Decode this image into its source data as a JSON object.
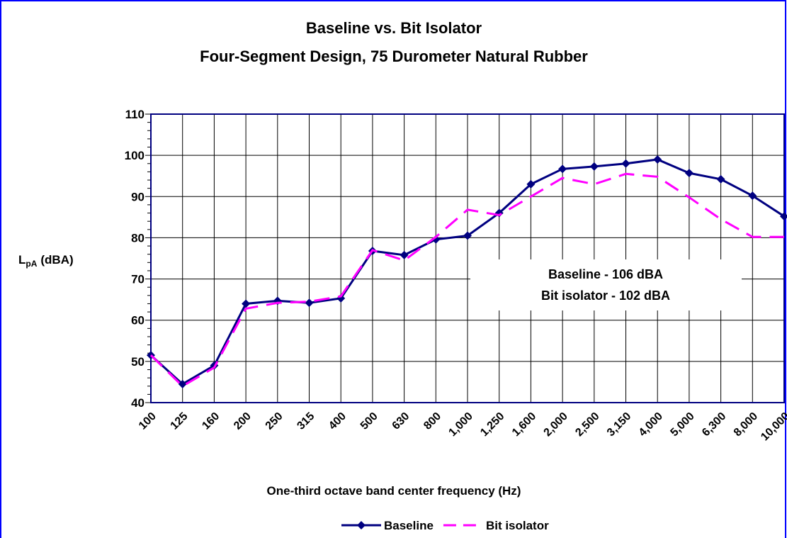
{
  "chart_data": {
    "type": "line",
    "title": [
      "Baseline vs. Bit Isolator",
      "Four-Segment Design, 75 Durometer Natural Rubber"
    ],
    "ylabel": {
      "base": "L",
      "subscript": "pA",
      "suffix": "(dBA)"
    },
    "xlabel": "One-third octave band center frequency (Hz)",
    "categories": [
      "100",
      "125",
      "160",
      "200",
      "250",
      "315",
      "400",
      "500",
      "630",
      "800",
      "1,000",
      "1,250",
      "1,600",
      "2,000",
      "2,500",
      "3,150",
      "4,000",
      "5,000",
      "6,300",
      "8,000",
      "10,000"
    ],
    "series": [
      {
        "name": "Baseline",
        "color": "#000080",
        "dash": false,
        "marker": "diamond",
        "values": [
          51.5,
          44.5,
          49,
          64,
          64.7,
          64.2,
          65.3,
          76.8,
          75.8,
          79.6,
          80.5,
          86,
          93,
          96.7,
          97.3,
          98,
          99,
          95.7,
          94.2,
          90.2,
          85.2
        ]
      },
      {
        "name": "Bit isolator",
        "color": "#ff00ff",
        "dash": true,
        "marker": "none",
        "values": [
          51.5,
          44,
          48.5,
          62.8,
          64.2,
          64.5,
          65.8,
          77,
          74.5,
          80.2,
          86.8,
          85.5,
          90,
          94.5,
          93,
          95.5,
          94.8,
          89.8,
          84.5,
          80.2,
          80.2
        ]
      }
    ],
    "ylim": [
      40,
      110
    ],
    "yticks": [
      40,
      50,
      60,
      70,
      80,
      90,
      100,
      110
    ],
    "grid": true,
    "annotations": [
      {
        "text": "Baseline - 106 dBA",
        "color": "#000080"
      },
      {
        "text": "Bit isolator - 102 dBA",
        "color": "#ff00ff"
      }
    ],
    "legend": "bottom"
  }
}
